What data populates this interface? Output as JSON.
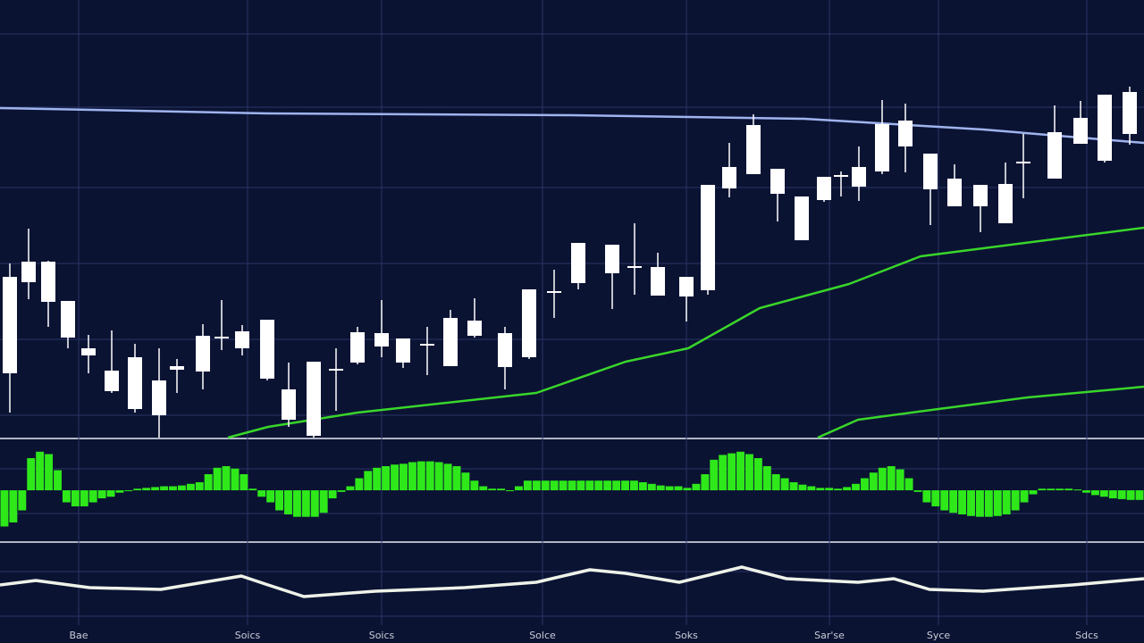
{
  "chart_data": {
    "type": "candlestick",
    "xlim": [
      0,
      1280
    ],
    "xticks": [
      {
        "value": 88,
        "label": "Bae"
      },
      {
        "value": 277,
        "label": "Soics"
      },
      {
        "value": 427,
        "label": "Soics"
      },
      {
        "value": 607,
        "label": "Solce"
      },
      {
        "value": 768,
        "label": "Soks"
      },
      {
        "value": 928,
        "label": "Sar'se"
      },
      {
        "value": 1050,
        "label": "Syce"
      },
      {
        "value": 1216,
        "label": "Sdcs"
      }
    ],
    "ylim": [
      0,
      490
    ],
    "grid": true,
    "candle_color": "#ffffff",
    "x": [
      11,
      32,
      54,
      76,
      99,
      125,
      151,
      178,
      198,
      227,
      248,
      271,
      299,
      323,
      351,
      376,
      400,
      427,
      451,
      478,
      504,
      531,
      565,
      592,
      620,
      647,
      685,
      710,
      736,
      768,
      792,
      816,
      843,
      870,
      897,
      922,
      941,
      961,
      987,
      1013,
      1041,
      1068,
      1097,
      1125,
      1145,
      1180,
      1209,
      1236,
      1264
    ],
    "open": [
      72,
      174,
      152,
      112,
      92,
      52,
      32,
      25,
      76,
      74,
      111,
      100,
      66,
      20,
      2,
      75,
      84,
      102,
      84,
      103,
      80,
      114,
      79,
      90,
      162,
      173,
      184,
      190,
      159,
      158,
      165,
      279,
      295,
      273,
      221,
      266,
      292,
      281,
      298,
      326,
      278,
      259,
      259,
      240,
      307,
      290,
      329,
      310,
      340
    ],
    "high": [
      195,
      234,
      198,
      153,
      115,
      120,
      105,
      100,
      88,
      127,
      154,
      126,
      132,
      84,
      85,
      100,
      124,
      154,
      111,
      124,
      143,
      156,
      124,
      166,
      188,
      218,
      216,
      240,
      207,
      180,
      283,
      330,
      362,
      301,
      270,
      292,
      298,
      326,
      378,
      374,
      318,
      306,
      283,
      308,
      340,
      372,
      377,
      384,
      393
    ],
    "low": [
      28,
      155,
      124,
      100,
      72,
      50,
      28,
      0,
      50,
      54,
      98,
      92,
      64,
      12,
      0,
      30,
      82,
      90,
      78,
      70,
      80,
      112,
      54,
      88,
      134,
      166,
      144,
      160,
      159,
      130,
      160,
      269,
      295,
      242,
      221,
      264,
      270,
      265,
      295,
      297,
      238,
      259,
      230,
      240,
      268,
      290,
      329,
      308,
      328
    ],
    "close": [
      180,
      197,
      197,
      153,
      100,
      75,
      90,
      64,
      80,
      114,
      113,
      119,
      132,
      54,
      85,
      77,
      118,
      117,
      111,
      105,
      134,
      131,
      117,
      166,
      164,
      218,
      216,
      192,
      191,
      180,
      283,
      303,
      350,
      301,
      270,
      292,
      294,
      303,
      351,
      355,
      318,
      290,
      283,
      284,
      309,
      342,
      358,
      384,
      387
    ],
    "lines": [
      {
        "color": "#9fb4ee",
        "x": [
          0,
          300,
          640,
          900,
          1100,
          1280
        ],
        "values": [
          369,
          363,
          361,
          357,
          345,
          330
        ]
      },
      {
        "color": "#39d62a",
        "x": [
          255,
          300,
          400,
          600,
          700,
          770,
          850,
          950,
          1030,
          1280
        ],
        "values": [
          0,
          12,
          28,
          50,
          85,
          100,
          145,
          172,
          203,
          235
        ]
      },
      {
        "color": "#39d62a",
        "x": [
          915,
          960,
          1050,
          1150,
          1280
        ],
        "values": [
          0,
          20,
          32,
          45,
          57
        ]
      }
    ],
    "histogram": {
      "color": "#2ee81a",
      "ylim": [
        -60,
        60
      ],
      "values": [
        -45,
        -40,
        -25,
        40,
        48,
        45,
        25,
        -15,
        -20,
        -20,
        -15,
        -10,
        -8,
        -3,
        0,
        2,
        3,
        4,
        5,
        5,
        6,
        8,
        10,
        20,
        28,
        30,
        27,
        20,
        2,
        -8,
        -15,
        -25,
        -30,
        -33,
        -33,
        -33,
        -28,
        -10,
        -2,
        5,
        15,
        24,
        28,
        30,
        32,
        33,
        35,
        36,
        36,
        35,
        33,
        30,
        22,
        12,
        5,
        2,
        2,
        0,
        5,
        12,
        12,
        12,
        12,
        12,
        12,
        12,
        12,
        12,
        12,
        12,
        12,
        12,
        10,
        8,
        6,
        5,
        5,
        3,
        8,
        20,
        38,
        44,
        46,
        48,
        45,
        40,
        30,
        20,
        15,
        10,
        7,
        5,
        3,
        3,
        2,
        4,
        8,
        15,
        22,
        28,
        30,
        26,
        15,
        -2,
        -15,
        -20,
        -25,
        -28,
        -30,
        -32,
        -33,
        -33,
        -32,
        -30,
        -25,
        -15,
        -5,
        2,
        2,
        2,
        2,
        1,
        -3,
        -6,
        -8,
        -10,
        -11,
        -12,
        -12
      ]
    },
    "oscillator": {
      "color": "#eef2e8",
      "ylim": [
        0,
        90
      ],
      "x": [
        0,
        40,
        100,
        180,
        270,
        300,
        340,
        420,
        520,
        600,
        660,
        700,
        760,
        830,
        880,
        960,
        1000,
        1040,
        1100,
        1200,
        1280
      ],
      "values": [
        45,
        50,
        42,
        40,
        55,
        45,
        32,
        38,
        42,
        48,
        62,
        58,
        48,
        65,
        52,
        48,
        52,
        40,
        38,
        45,
        52
      ]
    }
  }
}
